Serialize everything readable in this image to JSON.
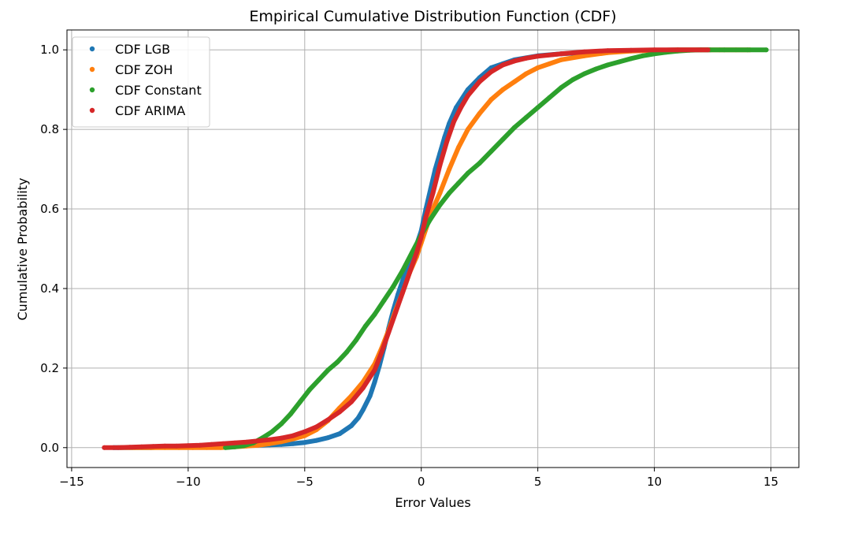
{
  "chart_data": {
    "type": "scatter",
    "title": "Empirical Cumulative Distribution Function (CDF)",
    "xlabel": "Error Values",
    "ylabel": "Cumulative Probability",
    "xlim": [
      -15.2,
      16.2
    ],
    "ylim": [
      -0.05,
      1.05
    ],
    "x_ticks": [
      -15,
      -10,
      -5,
      0,
      5,
      10,
      15
    ],
    "x_tick_labels": [
      "−15",
      "−10",
      "−5",
      "0",
      "5",
      "10",
      "15"
    ],
    "y_ticks": [
      0.0,
      0.2,
      0.4,
      0.6,
      0.8,
      1.0
    ],
    "y_tick_labels": [
      "0.0",
      "0.2",
      "0.4",
      "0.6",
      "0.8",
      "1.0"
    ],
    "grid": true,
    "legend_position": "top-left",
    "series": [
      {
        "name": "CDF LGB",
        "color": "#1f77b4",
        "x": [
          -13.2,
          -12.4,
          -11.6,
          -10.8,
          -10.2,
          -9.5,
          -9.0,
          -8.5,
          -8.0,
          -7.5,
          -7.0,
          -6.5,
          -6.0,
          -5.5,
          -5.0,
          -4.5,
          -4.0,
          -3.5,
          -3.0,
          -2.7,
          -2.5,
          -2.2,
          -2.0,
          -1.8,
          -1.6,
          -1.4,
          -1.2,
          -1.0,
          -0.8,
          -0.6,
          -0.4,
          -0.2,
          0.0,
          0.2,
          0.4,
          0.6,
          0.8,
          1.0,
          1.2,
          1.5,
          2.0,
          2.5,
          3.0,
          3.5,
          4.0,
          4.5,
          5.0,
          6.0,
          7.0,
          8.0,
          9.0,
          10.0,
          11.0,
          12.0,
          12.4
        ],
        "y": [
          0.0,
          0.0,
          0.0,
          0.002,
          0.003,
          0.004,
          0.004,
          0.005,
          0.005,
          0.006,
          0.006,
          0.007,
          0.008,
          0.01,
          0.013,
          0.018,
          0.025,
          0.035,
          0.055,
          0.075,
          0.095,
          0.13,
          0.165,
          0.205,
          0.25,
          0.3,
          0.345,
          0.385,
          0.42,
          0.455,
          0.485,
          0.51,
          0.545,
          0.6,
          0.65,
          0.7,
          0.74,
          0.78,
          0.815,
          0.855,
          0.9,
          0.93,
          0.955,
          0.965,
          0.975,
          0.98,
          0.985,
          0.99,
          0.993,
          0.996,
          0.998,
          0.999,
          1.0,
          1.0,
          1.0
        ]
      },
      {
        "name": "CDF ZOH",
        "color": "#ff7f0e",
        "x": [
          -12.9,
          -12.3,
          -11.6,
          -11.0,
          -10.4,
          -9.8,
          -9.2,
          -8.6,
          -8.0,
          -7.5,
          -7.0,
          -6.5,
          -6.0,
          -5.5,
          -5.0,
          -4.5,
          -4.0,
          -3.5,
          -3.0,
          -2.5,
          -2.0,
          -1.7,
          -1.4,
          -1.1,
          -0.8,
          -0.5,
          -0.2,
          0.0,
          0.2,
          0.5,
          0.8,
          1.2,
          1.6,
          2.0,
          2.5,
          3.0,
          3.5,
          4.0,
          4.5,
          5.0,
          5.5,
          6.0,
          7.0,
          8.0,
          9.0,
          10.0,
          11.0,
          12.0,
          12.8,
          13.5,
          14.1
        ],
        "y": [
          0.0,
          0.0,
          0.0,
          0.0,
          0.0,
          0.0,
          0.0,
          0.0,
          0.002,
          0.004,
          0.006,
          0.01,
          0.015,
          0.022,
          0.03,
          0.045,
          0.068,
          0.1,
          0.13,
          0.165,
          0.21,
          0.25,
          0.295,
          0.345,
          0.39,
          0.44,
          0.48,
          0.515,
          0.55,
          0.6,
          0.64,
          0.7,
          0.755,
          0.8,
          0.84,
          0.875,
          0.9,
          0.92,
          0.94,
          0.955,
          0.965,
          0.975,
          0.985,
          0.993,
          0.997,
          0.999,
          1.0,
          1.0,
          1.0,
          1.0,
          1.0
        ]
      },
      {
        "name": "CDF Constant",
        "color": "#2ca02c",
        "x": [
          -8.4,
          -8.0,
          -7.6,
          -7.2,
          -6.8,
          -6.4,
          -6.0,
          -5.6,
          -5.2,
          -4.8,
          -4.4,
          -4.0,
          -3.6,
          -3.2,
          -2.8,
          -2.4,
          -2.0,
          -1.6,
          -1.2,
          -0.8,
          -0.4,
          0.0,
          0.4,
          0.8,
          1.2,
          1.6,
          2.0,
          2.5,
          3.0,
          3.5,
          4.0,
          4.5,
          5.0,
          5.5,
          6.0,
          6.5,
          7.0,
          7.5,
          8.0,
          8.5,
          9.0,
          9.5,
          10.0,
          10.5,
          11.0,
          11.5,
          12.0,
          13.0,
          14.0,
          14.8
        ],
        "y": [
          0.0,
          0.002,
          0.005,
          0.012,
          0.025,
          0.04,
          0.06,
          0.085,
          0.115,
          0.145,
          0.17,
          0.195,
          0.215,
          0.24,
          0.27,
          0.305,
          0.335,
          0.37,
          0.405,
          0.445,
          0.49,
          0.535,
          0.575,
          0.61,
          0.64,
          0.665,
          0.69,
          0.715,
          0.745,
          0.775,
          0.805,
          0.83,
          0.855,
          0.88,
          0.905,
          0.925,
          0.94,
          0.952,
          0.962,
          0.97,
          0.978,
          0.985,
          0.99,
          0.994,
          0.997,
          0.999,
          1.0,
          1.0,
          1.0,
          1.0
        ]
      },
      {
        "name": "CDF ARIMA",
        "color": "#d62728",
        "x": [
          -13.6,
          -13.0,
          -12.5,
          -12.0,
          -11.5,
          -11.0,
          -10.5,
          -10.0,
          -9.5,
          -9.0,
          -8.5,
          -8.0,
          -7.5,
          -7.0,
          -6.5,
          -6.0,
          -5.5,
          -5.0,
          -4.5,
          -4.0,
          -3.5,
          -3.0,
          -2.5,
          -2.0,
          -1.7,
          -1.4,
          -1.1,
          -0.8,
          -0.5,
          -0.2,
          0.0,
          0.2,
          0.5,
          0.8,
          1.1,
          1.4,
          1.7,
          2.0,
          2.5,
          3.0,
          3.5,
          4.0,
          4.5,
          5.0,
          6.0,
          7.0,
          8.0,
          9.0,
          10.0,
          11.0,
          12.3
        ],
        "y": [
          0.0,
          0.0,
          0.001,
          0.002,
          0.003,
          0.004,
          0.004,
          0.005,
          0.006,
          0.008,
          0.01,
          0.012,
          0.014,
          0.017,
          0.02,
          0.024,
          0.03,
          0.04,
          0.052,
          0.07,
          0.09,
          0.115,
          0.15,
          0.195,
          0.24,
          0.29,
          0.34,
          0.39,
          0.44,
          0.49,
          0.53,
          0.58,
          0.64,
          0.71,
          0.77,
          0.82,
          0.855,
          0.885,
          0.92,
          0.945,
          0.962,
          0.972,
          0.979,
          0.984,
          0.99,
          0.995,
          0.998,
          0.999,
          1.0,
          1.0,
          1.0
        ]
      }
    ]
  }
}
